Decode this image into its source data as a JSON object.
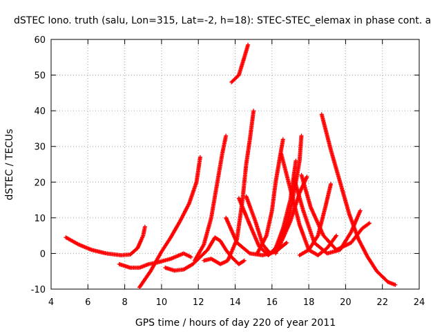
{
  "chart_data": {
    "type": "scatter",
    "title": "dSTEC Iono. truth (salu, Lon=315, Lat=-2, h=18): STEC-STEC_elemax in phase cont. a",
    "xlabel": "GPS time / hours of day 220 of year 2011",
    "ylabel": "dSTEC  / TECUs",
    "xlim": [
      4,
      24
    ],
    "ylim": [
      -10,
      60
    ],
    "x_ticks": [
      4,
      6,
      8,
      10,
      12,
      14,
      16,
      18,
      20,
      22,
      24
    ],
    "y_ticks": [
      -10,
      0,
      10,
      20,
      30,
      40,
      50,
      60
    ],
    "grid": true,
    "legend": "none",
    "marker": "plus",
    "color": "#ff0000",
    "series": [
      {
        "points": [
          [
            4.8,
            4.5
          ],
          [
            5.5,
            2.5
          ],
          [
            6.2,
            1.0
          ],
          [
            7.0,
            0.0
          ],
          [
            7.8,
            -0.5
          ],
          [
            8.3,
            -0.3
          ],
          [
            8.7,
            1.5
          ],
          [
            9.0,
            5.0
          ],
          [
            9.1,
            7.5
          ]
        ]
      },
      {
        "points": [
          [
            7.7,
            -3.0
          ],
          [
            8.3,
            -4.0
          ],
          [
            8.8,
            -4.0
          ],
          [
            9.3,
            -3.0
          ],
          [
            9.8,
            -2.5
          ],
          [
            10.5,
            -1.5
          ],
          [
            11.2,
            0.0
          ],
          [
            11.6,
            -1.0
          ]
        ]
      },
      {
        "points": [
          [
            8.8,
            -9.5
          ],
          [
            9.4,
            -5.0
          ],
          [
            10.0,
            0.5
          ],
          [
            10.5,
            4.5
          ],
          [
            11.0,
            9.0
          ],
          [
            11.5,
            14.0
          ],
          [
            11.9,
            20.0
          ],
          [
            12.1,
            27.0
          ]
        ]
      },
      {
        "points": [
          [
            10.2,
            -4.0
          ],
          [
            10.7,
            -4.8
          ],
          [
            11.2,
            -4.5
          ],
          [
            11.7,
            -3.0
          ],
          [
            12.1,
            -1.0
          ],
          [
            12.5,
            1.0
          ],
          [
            12.9,
            4.5
          ],
          [
            13.2,
            3.5
          ],
          [
            13.5,
            1.0
          ],
          [
            13.8,
            -1.0
          ],
          [
            14.2,
            -3.0
          ],
          [
            14.5,
            -2.0
          ]
        ]
      },
      {
        "points": [
          [
            11.8,
            -2.0
          ],
          [
            12.3,
            2.5
          ],
          [
            12.7,
            10.0
          ],
          [
            13.0,
            19.0
          ],
          [
            13.3,
            28.0
          ],
          [
            13.5,
            33.0
          ]
        ]
      },
      {
        "points": [
          [
            12.3,
            -2.0
          ],
          [
            12.7,
            -1.5
          ],
          [
            13.2,
            -3.0
          ],
          [
            13.6,
            -2.0
          ],
          [
            14.1,
            4.0
          ],
          [
            14.4,
            15.0
          ],
          [
            14.6,
            25.0
          ],
          [
            14.8,
            32.0
          ],
          [
            15.0,
            40.0
          ]
        ]
      },
      {
        "points": [
          [
            13.8,
            48.0
          ],
          [
            14.2,
            50.0
          ],
          [
            14.5,
            55.0
          ],
          [
            14.7,
            58.5
          ]
        ]
      },
      {
        "points": [
          [
            13.5,
            10.0
          ],
          [
            14.1,
            3.0
          ],
          [
            14.8,
            0.0
          ],
          [
            15.5,
            -0.5
          ],
          [
            16.2,
            0.5
          ],
          [
            16.8,
            3.0
          ]
        ]
      },
      {
        "points": [
          [
            14.2,
            15.5
          ],
          [
            14.8,
            8.0
          ],
          [
            15.3,
            2.0
          ],
          [
            15.8,
            -0.5
          ],
          [
            16.4,
            2.0
          ],
          [
            17.0,
            9.0
          ],
          [
            17.5,
            17.0
          ],
          [
            17.9,
            21.5
          ]
        ]
      },
      {
        "points": [
          [
            14.6,
            16.0
          ],
          [
            15.1,
            9.0
          ],
          [
            15.5,
            2.5
          ],
          [
            15.9,
            0.0
          ],
          [
            16.2,
            1.5
          ],
          [
            16.6,
            7.0
          ],
          [
            17.0,
            15.0
          ],
          [
            17.3,
            26.0
          ]
        ]
      },
      {
        "points": [
          [
            15.2,
            0.0
          ],
          [
            15.7,
            5.0
          ],
          [
            16.0,
            12.0
          ],
          [
            16.2,
            20.0
          ],
          [
            16.4,
            26.0
          ],
          [
            16.6,
            32.0
          ]
        ]
      },
      {
        "points": [
          [
            16.2,
            0.0
          ],
          [
            16.6,
            5.0
          ],
          [
            17.0,
            12.0
          ],
          [
            17.3,
            20.0
          ],
          [
            17.5,
            26.0
          ],
          [
            17.6,
            33.0
          ]
        ]
      },
      {
        "points": [
          [
            16.5,
            28.0
          ],
          [
            17.0,
            18.0
          ],
          [
            17.5,
            8.0
          ],
          [
            18.0,
            1.0
          ],
          [
            18.5,
            -0.5
          ],
          [
            19.0,
            1.5
          ],
          [
            19.5,
            5.0
          ]
        ]
      },
      {
        "points": [
          [
            17.2,
            21.0
          ],
          [
            17.7,
            12.0
          ],
          [
            18.3,
            3.0
          ],
          [
            19.0,
            0.0
          ],
          [
            19.7,
            1.0
          ],
          [
            20.3,
            6.0
          ],
          [
            20.8,
            12.0
          ]
        ]
      },
      {
        "points": [
          [
            17.6,
            22.0
          ],
          [
            18.1,
            13.0
          ],
          [
            18.8,
            5.0
          ],
          [
            19.5,
            1.0
          ],
          [
            20.3,
            3.0
          ],
          [
            20.9,
            7.0
          ],
          [
            21.3,
            8.5
          ]
        ]
      },
      {
        "points": [
          [
            17.5,
            -0.5
          ],
          [
            18.0,
            1.0
          ],
          [
            18.5,
            5.0
          ],
          [
            18.9,
            13.0
          ],
          [
            19.2,
            19.5
          ]
        ]
      },
      {
        "points": [
          [
            18.7,
            39.0
          ],
          [
            19.2,
            29.0
          ],
          [
            19.7,
            20.0
          ],
          [
            20.2,
            11.0
          ],
          [
            20.7,
            4.0
          ],
          [
            21.2,
            -1.0
          ],
          [
            21.7,
            -5.0
          ],
          [
            22.3,
            -8.0
          ],
          [
            22.7,
            -8.8
          ]
        ]
      }
    ]
  }
}
